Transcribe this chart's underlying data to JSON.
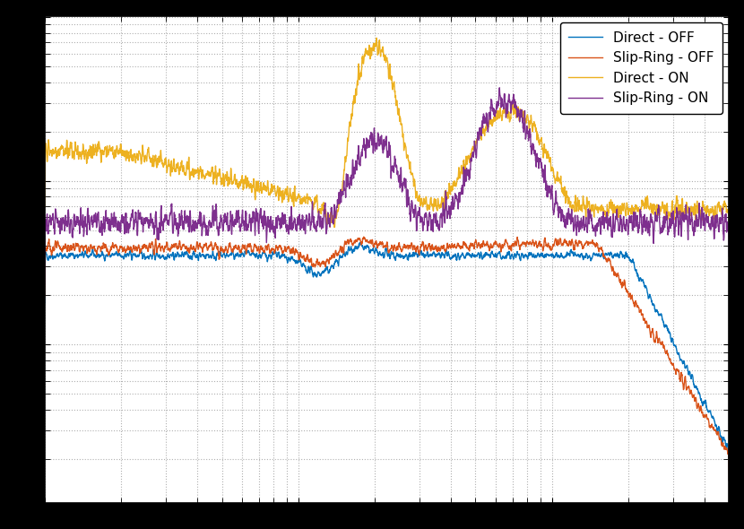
{
  "lines": [
    {
      "label": "Direct - OFF",
      "color": "#0072BD"
    },
    {
      "label": "Slip-Ring - OFF",
      "color": "#D95319"
    },
    {
      "label": "Direct - ON",
      "color": "#EDB120"
    },
    {
      "label": "Slip-Ring - ON",
      "color": "#7E2F8E"
    }
  ],
  "background_color": "#ffffff",
  "outer_background": "#000000",
  "grid_color": "#b0b0b0",
  "grid_linestyle": ":",
  "linewidth": 1.0,
  "legend_fontsize": 11,
  "legend_loc": "upper right"
}
